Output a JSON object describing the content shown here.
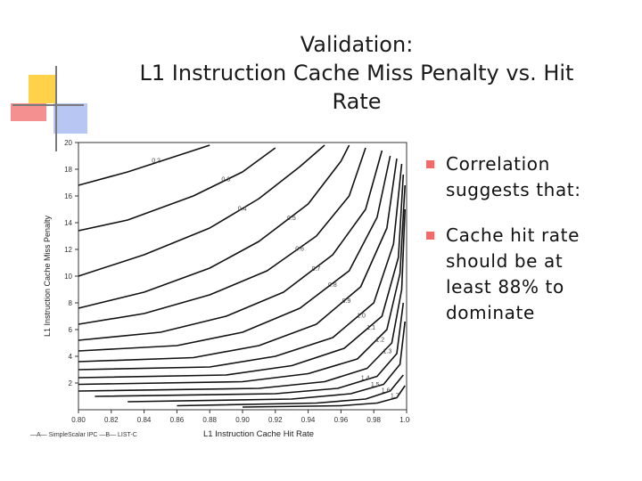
{
  "slide": {
    "title_lines": [
      "Validation:",
      "L1 Instruction Cache Miss Penalty vs. Hit",
      "Rate"
    ],
    "bullets": [
      "Correlation suggests that:",
      "Cache hit rate should be at least 88% to dominate"
    ],
    "colors": {
      "accent_yellow": "#ffd24a",
      "accent_red": "#f26b6b",
      "accent_blue": "#b7c6f2",
      "text": "#111111"
    }
  },
  "chart_data": {
    "type": "line",
    "xlabel": "L1 Instruction Cache Hit Rate",
    "ylabel": "L1 Instruction Cache Miss Penalty",
    "xlim": [
      0.8,
      1.0
    ],
    "ylim": [
      0,
      20
    ],
    "x_ticks": [
      "0.80",
      "0.82",
      "0.84",
      "0.86",
      "0.88",
      "0.90",
      "0.92",
      "0.94",
      "0.96",
      "0.98",
      "1.00"
    ],
    "y_ticks": [
      "2",
      "4",
      "6",
      "8",
      "10",
      "12",
      "14",
      "16",
      "18",
      "20"
    ],
    "legend": "—A— SimpleScalar IPC —B— LIST-C",
    "contours": [
      {
        "label": "0.2",
        "points": [
          [
            0.8,
            16.8
          ],
          [
            0.83,
            17.8
          ],
          [
            0.855,
            18.8
          ],
          [
            0.88,
            19.8
          ]
        ]
      },
      {
        "label": "0.3",
        "points": [
          [
            0.8,
            13.4
          ],
          [
            0.83,
            14.2
          ],
          [
            0.87,
            16.0
          ],
          [
            0.9,
            17.8
          ],
          [
            0.92,
            19.6
          ]
        ]
      },
      {
        "label": "0.4",
        "points": [
          [
            0.8,
            10.0
          ],
          [
            0.84,
            11.6
          ],
          [
            0.88,
            13.6
          ],
          [
            0.91,
            15.8
          ],
          [
            0.935,
            18.2
          ],
          [
            0.95,
            19.8
          ]
        ]
      },
      {
        "label": "0.5",
        "points": [
          [
            0.8,
            7.6
          ],
          [
            0.84,
            8.8
          ],
          [
            0.88,
            10.6
          ],
          [
            0.91,
            12.6
          ],
          [
            0.94,
            15.4
          ],
          [
            0.96,
            18.6
          ],
          [
            0.965,
            19.8
          ]
        ]
      },
      {
        "label": "0.6",
        "points": [
          [
            0.8,
            6.4
          ],
          [
            0.84,
            7.2
          ],
          [
            0.88,
            8.6
          ],
          [
            0.915,
            10.4
          ],
          [
            0.945,
            13.0
          ],
          [
            0.965,
            16.0
          ],
          [
            0.975,
            19.6
          ]
        ]
      },
      {
        "label": "0.7",
        "points": [
          [
            0.8,
            5.2
          ],
          [
            0.85,
            5.8
          ],
          [
            0.89,
            7.0
          ],
          [
            0.925,
            8.8
          ],
          [
            0.955,
            11.6
          ],
          [
            0.975,
            15.0
          ],
          [
            0.985,
            19.4
          ]
        ]
      },
      {
        "label": "0.8",
        "points": [
          [
            0.8,
            4.4
          ],
          [
            0.86,
            4.8
          ],
          [
            0.9,
            5.8
          ],
          [
            0.935,
            7.6
          ],
          [
            0.965,
            10.4
          ],
          [
            0.982,
            14.4
          ],
          [
            0.99,
            19.0
          ]
        ]
      },
      {
        "label": "0.9",
        "points": [
          [
            0.8,
            3.6
          ],
          [
            0.87,
            3.9
          ],
          [
            0.91,
            4.8
          ],
          [
            0.945,
            6.4
          ],
          [
            0.972,
            9.2
          ],
          [
            0.988,
            13.6
          ],
          [
            0.994,
            18.8
          ]
        ]
      },
      {
        "label": "1.0",
        "points": [
          [
            0.8,
            3.0
          ],
          [
            0.88,
            3.2
          ],
          [
            0.92,
            4.0
          ],
          [
            0.955,
            5.4
          ],
          [
            0.98,
            8.0
          ],
          [
            0.992,
            12.4
          ],
          [
            0.997,
            18.4
          ]
        ]
      },
      {
        "label": "1.1",
        "points": [
          [
            0.8,
            2.4
          ],
          [
            0.89,
            2.6
          ],
          [
            0.93,
            3.3
          ],
          [
            0.962,
            4.6
          ],
          [
            0.985,
            7.0
          ],
          [
            0.995,
            11.4
          ],
          [
            0.998,
            17.6
          ]
        ]
      },
      {
        "label": "1.2",
        "points": [
          [
            0.8,
            1.9
          ],
          [
            0.9,
            2.1
          ],
          [
            0.94,
            2.7
          ],
          [
            0.97,
            3.8
          ],
          [
            0.988,
            6.0
          ],
          [
            0.996,
            10.2
          ],
          [
            0.999,
            16.8
          ]
        ]
      },
      {
        "label": "1.3",
        "points": [
          [
            0.8,
            1.4
          ],
          [
            0.91,
            1.6
          ],
          [
            0.95,
            2.1
          ],
          [
            0.976,
            3.1
          ],
          [
            0.991,
            5.0
          ],
          [
            0.997,
            9.0
          ],
          [
            0.999,
            15.0
          ]
        ]
      },
      {
        "label": "1.4",
        "points": [
          [
            0.81,
            1.0
          ],
          [
            0.92,
            1.2
          ],
          [
            0.958,
            1.6
          ],
          [
            0.982,
            2.5
          ],
          [
            0.994,
            4.2
          ],
          [
            0.998,
            8.0
          ]
        ]
      },
      {
        "label": "1.5",
        "points": [
          [
            0.83,
            0.6
          ],
          [
            0.93,
            0.8
          ],
          [
            0.966,
            1.2
          ],
          [
            0.986,
            1.9
          ],
          [
            0.996,
            3.4
          ],
          [
            0.999,
            6.6
          ]
        ]
      },
      {
        "label": "1.6",
        "points": [
          [
            0.86,
            0.3
          ],
          [
            0.945,
            0.5
          ],
          [
            0.975,
            0.8
          ],
          [
            0.99,
            1.4
          ],
          [
            0.998,
            2.6
          ]
        ]
      },
      {
        "label": "1.7",
        "points": [
          [
            0.9,
            0.2
          ],
          [
            0.96,
            0.3
          ],
          [
            0.982,
            0.5
          ],
          [
            0.994,
            0.9
          ],
          [
            0.999,
            1.8
          ]
        ]
      }
    ]
  }
}
